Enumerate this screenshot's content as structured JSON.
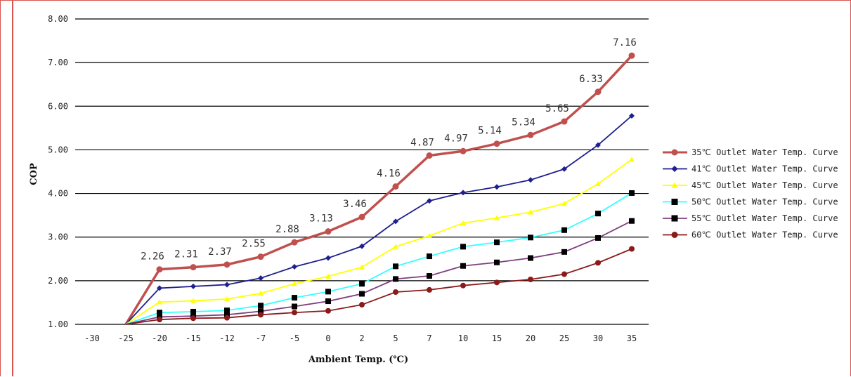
{
  "chart_data": {
    "type": "line",
    "title": "",
    "xlabel": "Ambient Temp. (℃)",
    "ylabel": "COP",
    "categories": [
      "-30",
      "-25",
      "-20",
      "-15",
      "-12",
      "-7",
      "-5",
      "0",
      "2",
      "5",
      "7",
      "10",
      "15",
      "20",
      "25",
      "30",
      "35"
    ],
    "ylim": [
      1.0,
      8.0
    ],
    "y_ticks": [
      "1.00",
      "2.00",
      "3.00",
      "4.00",
      "5.00",
      "6.00",
      "7.00",
      "8.00"
    ],
    "grid": "horizontal",
    "legend_position": "right",
    "series": [
      {
        "name": "35℃ Outlet Water Temp. Curve",
        "color": "#c0504d",
        "marker": "circle",
        "values": [
          null,
          0.9,
          2.26,
          2.31,
          2.37,
          2.55,
          2.88,
          3.13,
          3.46,
          4.16,
          4.87,
          4.97,
          5.14,
          5.34,
          5.65,
          6.33,
          7.16
        ],
        "labels": [
          null,
          null,
          "2.26",
          "2.31",
          "2.37",
          "2.55",
          "2.88",
          "3.13",
          "3.46",
          "4.16",
          "4.87",
          "4.97",
          "5.14",
          "5.34",
          "5.65",
          "6.33",
          "7.16"
        ]
      },
      {
        "name": "41℃ Outlet Water Temp. Curve",
        "color": "#1f1f8f",
        "marker": "diamond",
        "values": [
          null,
          0.9,
          1.83,
          1.87,
          1.91,
          2.06,
          2.32,
          2.52,
          2.79,
          3.36,
          3.83,
          4.02,
          4.15,
          4.31,
          4.56,
          5.11,
          5.78
        ]
      },
      {
        "name": "45℃ Outlet Water Temp. Curve",
        "color": "#ffff00",
        "marker": "triangle",
        "values": [
          null,
          0.9,
          1.51,
          1.54,
          1.58,
          1.71,
          1.93,
          2.1,
          2.31,
          2.78,
          3.03,
          3.32,
          3.44,
          3.57,
          3.77,
          4.22,
          4.78
        ]
      },
      {
        "name": "50℃ Outlet Water Temp. Curve",
        "color": "#33ffff",
        "marker": "square",
        "values": [
          null,
          0.9,
          1.27,
          1.29,
          1.32,
          1.43,
          1.61,
          1.75,
          1.93,
          2.33,
          2.56,
          2.78,
          2.88,
          2.99,
          3.16,
          3.54,
          4.01
        ]
      },
      {
        "name": "55℃ Outlet Water Temp. Curve",
        "color": "#7f3f7f",
        "marker": "square",
        "values": [
          null,
          0.9,
          1.17,
          1.19,
          1.22,
          1.3,
          1.41,
          1.53,
          1.7,
          2.04,
          2.11,
          2.34,
          2.42,
          2.52,
          2.66,
          2.98,
          3.37
        ]
      },
      {
        "name": "60℃ Outlet Water Temp. Curve",
        "color": "#8b1a1a",
        "marker": "circle",
        "values": [
          null,
          0.9,
          1.11,
          1.14,
          1.15,
          1.22,
          1.27,
          1.31,
          1.45,
          1.74,
          1.79,
          1.89,
          1.96,
          2.03,
          2.15,
          2.41,
          2.73
        ]
      }
    ]
  }
}
